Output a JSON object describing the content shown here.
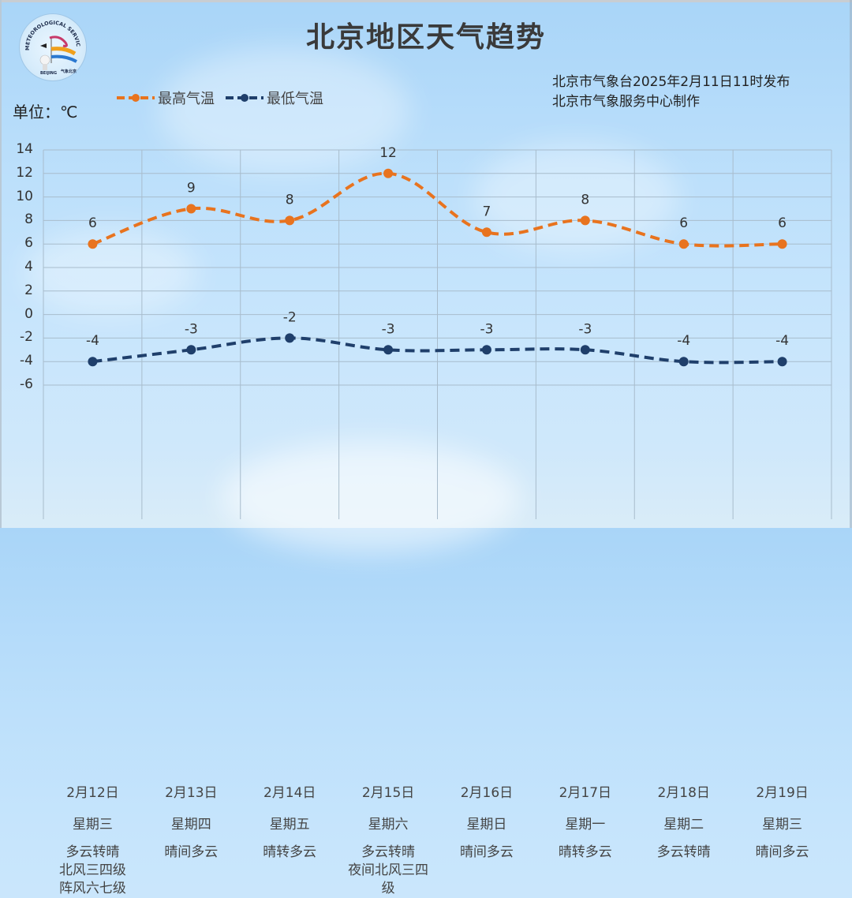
{
  "header": {
    "title": "北京地区天气趋势",
    "publisher_line1": "北京市气象台2025年2月11日11时发布",
    "publisher_line2": "北京市气象服务中心制作",
    "unit_label": "单位：℃",
    "logo_text": "BEIJING METEOROLOGICAL SERVICE 气象北京"
  },
  "legend": [
    {
      "label": "最高气温",
      "color": "#e8731e"
    },
    {
      "label": "最低气温",
      "color": "#1f3f6b"
    }
  ],
  "colors": {
    "high": "#e8731e",
    "low": "#1f3f6b",
    "grid": "#a8bccc",
    "text": "#333333"
  },
  "columns": [
    {
      "date": "2月12日",
      "weekday": "星期三",
      "weather": [
        "多云转晴",
        "北风三四级",
        "阵风六七级"
      ]
    },
    {
      "date": "2月13日",
      "weekday": "星期四",
      "weather": [
        "晴间多云"
      ]
    },
    {
      "date": "2月14日",
      "weekday": "星期五",
      "weather": [
        "晴转多云"
      ]
    },
    {
      "date": "2月15日",
      "weekday": "星期六",
      "weather": [
        "多云转晴",
        "夜间北风三四",
        "级"
      ]
    },
    {
      "date": "2月16日",
      "weekday": "星期日",
      "weather": [
        "晴间多云"
      ]
    },
    {
      "date": "2月17日",
      "weekday": "星期一",
      "weather": [
        "晴转多云"
      ]
    },
    {
      "date": "2月18日",
      "weekday": "星期二",
      "weather": [
        "多云转晴"
      ]
    },
    {
      "date": "2月19日",
      "weekday": "星期三",
      "weather": [
        "晴间多云"
      ]
    }
  ],
  "chart_data": {
    "type": "line",
    "title": "北京地区天气趋势",
    "xlabel": "",
    "ylabel": "单位：℃",
    "categories": [
      "2月12日",
      "2月13日",
      "2月14日",
      "2月15日",
      "2月16日",
      "2月17日",
      "2月18日",
      "2月19日"
    ],
    "series": [
      {
        "name": "最高气温",
        "values": [
          6,
          9,
          8,
          12,
          7,
          8,
          6,
          6
        ],
        "color": "#e8731e",
        "style": "dashed",
        "markers": true,
        "data_labels": true
      },
      {
        "name": "最低气温",
        "values": [
          -4,
          -3,
          -2,
          -3,
          -3,
          -3,
          -4,
          -4
        ],
        "color": "#1f3f6b",
        "style": "dashed",
        "markers": true,
        "data_labels": true
      }
    ],
    "yticks": [
      14,
      12,
      10,
      8,
      6,
      4,
      2,
      0,
      -2,
      -4,
      -6
    ],
    "ylim": [
      -6,
      14
    ],
    "grid": true,
    "legend_position": "top-left"
  }
}
